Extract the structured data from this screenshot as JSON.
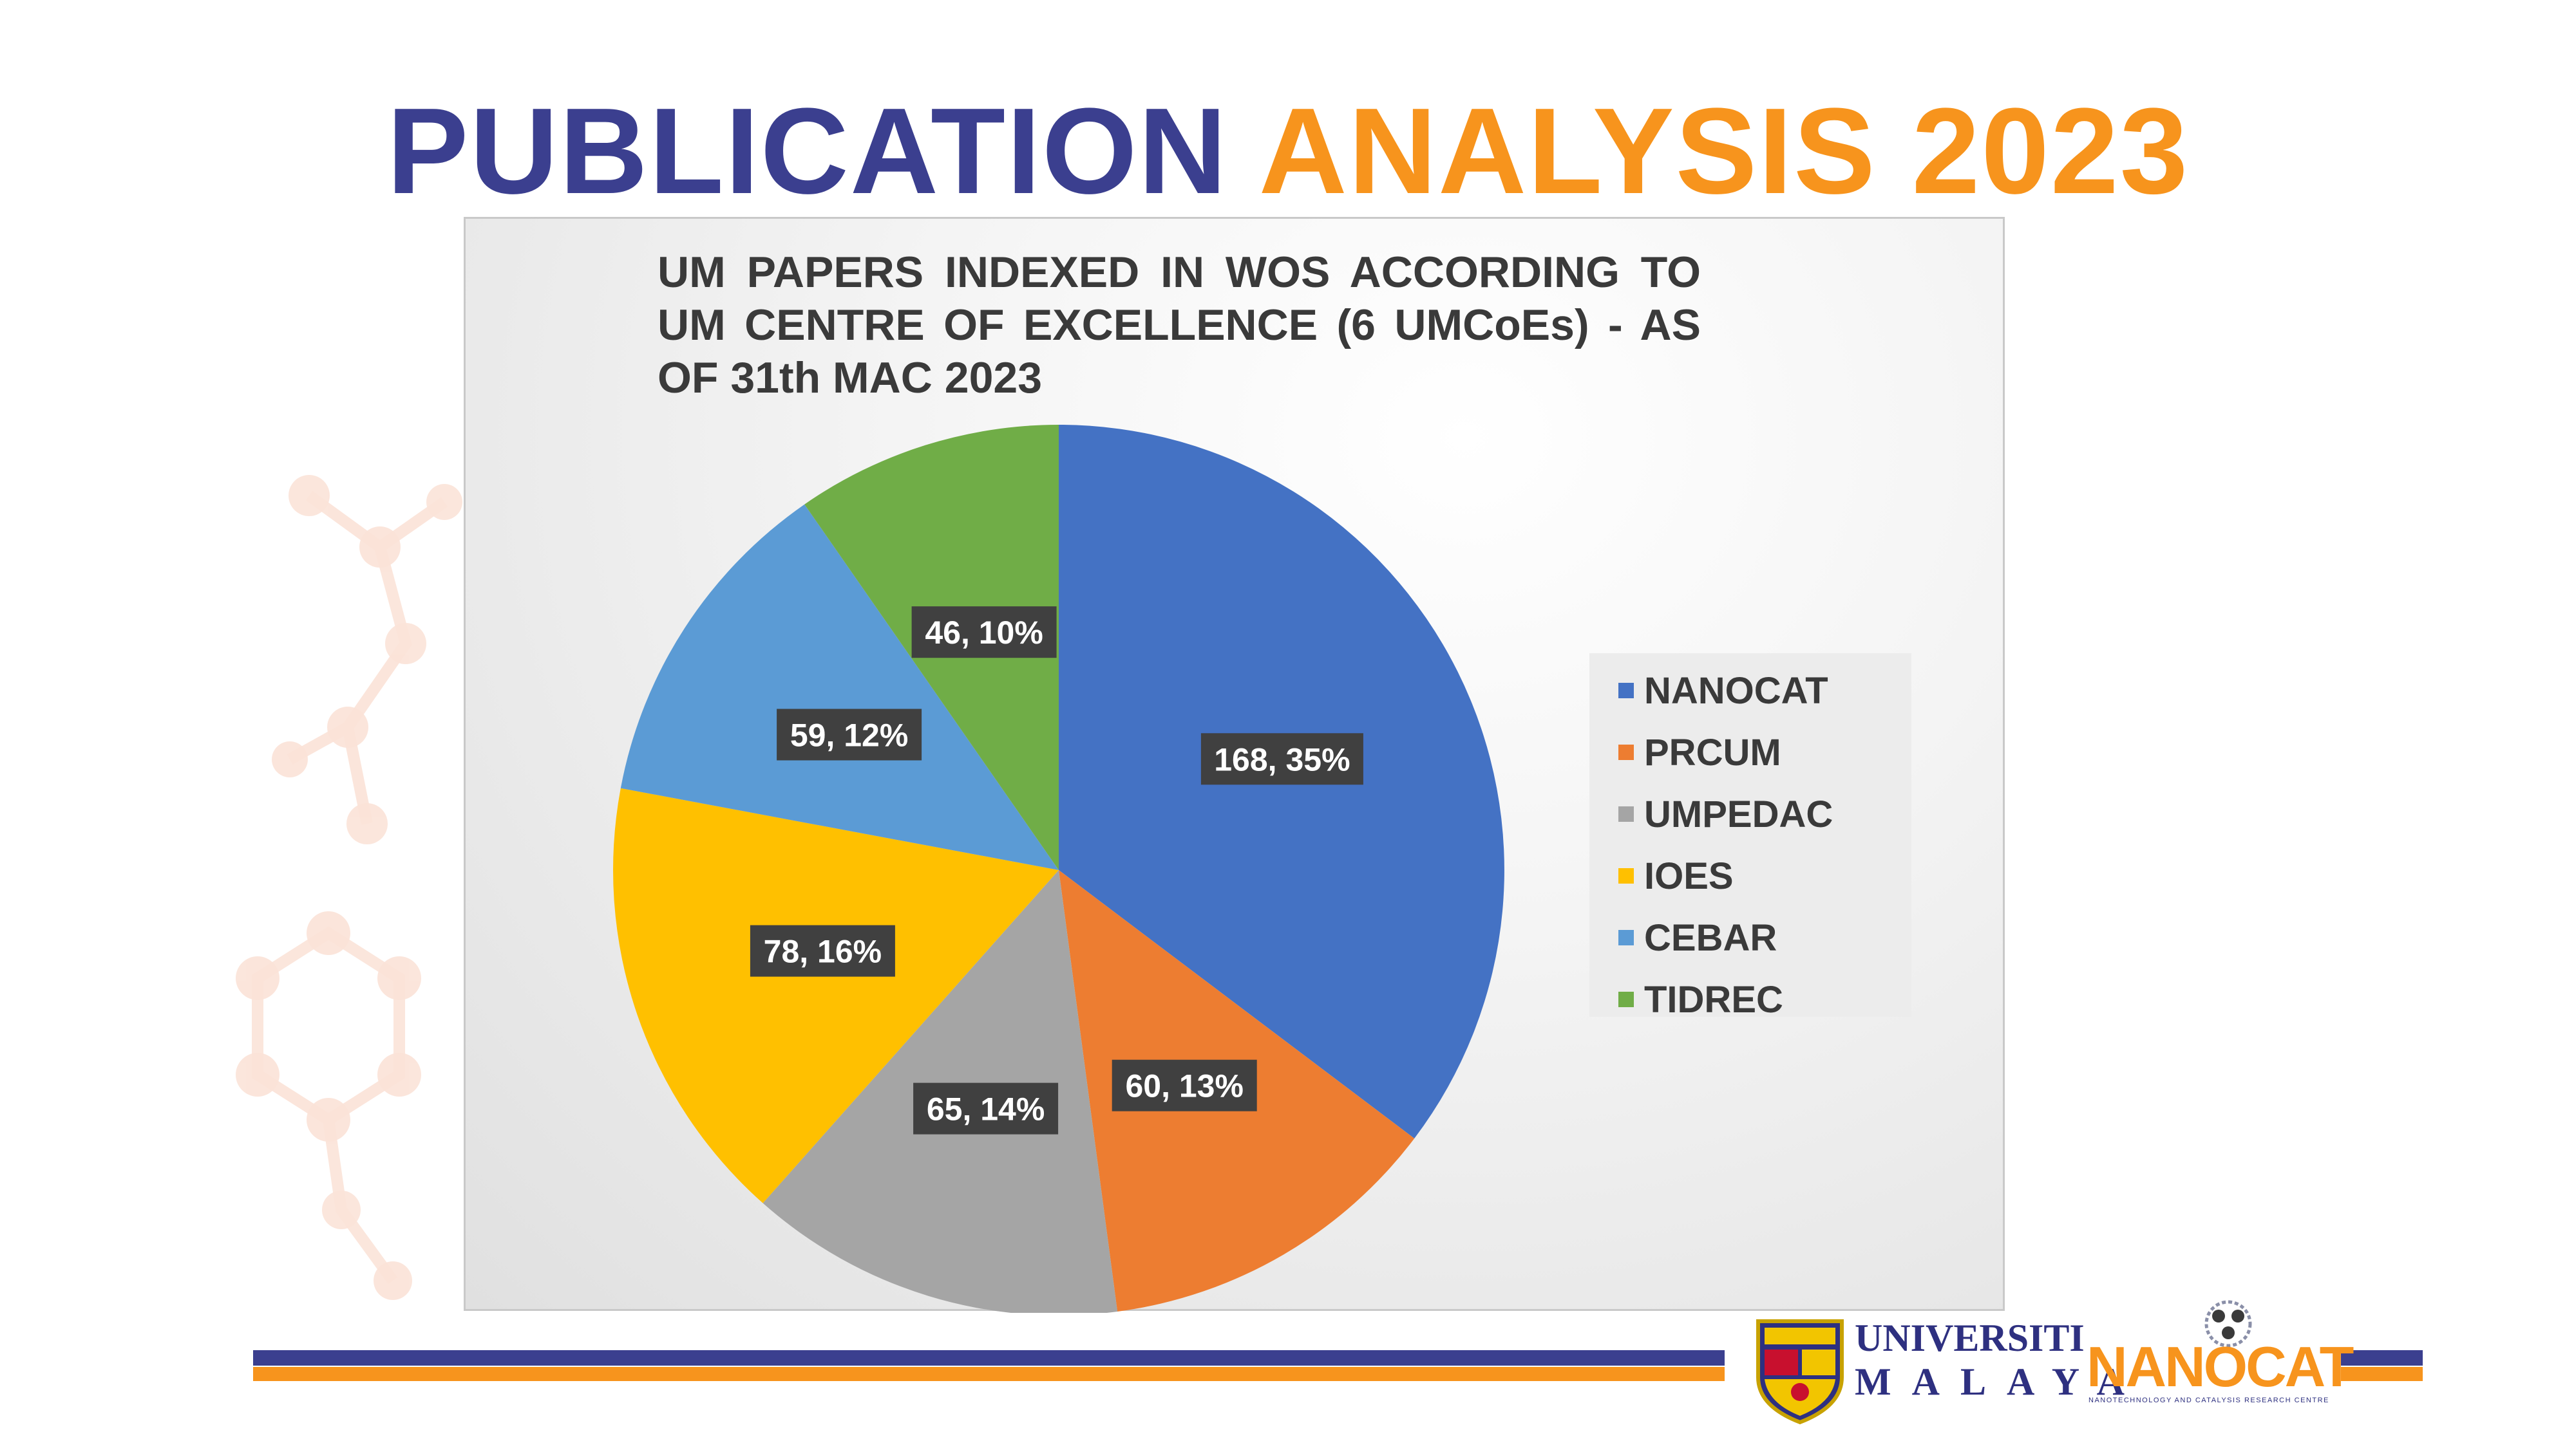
{
  "slide": {
    "title_part_1": "PUBLICATION",
    "title_part_2": "ANALYSIS 2023"
  },
  "chart_data": {
    "type": "pie",
    "title": "UM PAPERS INDEXED IN WOS ACCORDING TO UM CENTRE OF EXCELLENCE (6 UMCoEs) -   AS OF 31th MAC 2023",
    "categories": [
      "NANOCAT",
      "PRCUM",
      "UMPEDAC",
      "IOES",
      "CEBAR",
      "TIDREC"
    ],
    "values": [
      168,
      60,
      65,
      78,
      59,
      46
    ],
    "percent_labels": [
      "35%",
      "13%",
      "14%",
      "16%",
      "12%",
      "10%"
    ],
    "data_labels": [
      "168, 35%",
      "60, 13%",
      "65, 14%",
      "78, 16%",
      "59, 12%",
      "46, 10%"
    ],
    "colors": [
      "#4472c4",
      "#ed7d31",
      "#a5a5a5",
      "#ffc000",
      "#5b9bd5",
      "#70ad47"
    ],
    "legend_position": "right",
    "start_angle": "12 o'clock, clockwise"
  },
  "legend": {
    "items": [
      {
        "label": "NANOCAT",
        "color": "#4472c4"
      },
      {
        "label": "PRCUM",
        "color": "#ed7d31"
      },
      {
        "label": "UMPEDAC",
        "color": "#a5a5a5"
      },
      {
        "label": "IOES",
        "color": "#ffc000"
      },
      {
        "label": "CEBAR",
        "color": "#5b9bd5"
      },
      {
        "label": "TIDREC",
        "color": "#70ad47"
      }
    ]
  },
  "footer": {
    "um_logo_line_1": "UNIVERSITI",
    "um_logo_line_2": "MALAYA",
    "nanocat_logo_text": "NANOCAT",
    "nanocat_tagline": "NANOTECHNOLOGY AND CATALYSIS RESEARCH CENTRE"
  },
  "colors": {
    "brand_purple": "#3b3f8f",
    "brand_orange": "#f7941d"
  }
}
